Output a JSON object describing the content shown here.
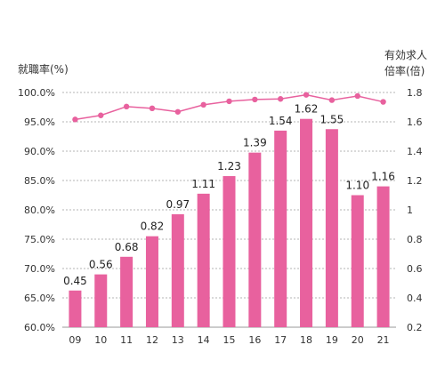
{
  "chart_data": {
    "type": "bar+line",
    "categories": [
      "09",
      "10",
      "11",
      "12",
      "13",
      "14",
      "15",
      "16",
      "17",
      "18",
      "19",
      "20",
      "21"
    ],
    "left_axis": {
      "title": "就職率(%)",
      "ylim": [
        60.0,
        100.0
      ],
      "ticks": [
        "100.0%",
        "95.0%",
        "90.0%",
        "85.0%",
        "80.0%",
        "75.0%",
        "70.0%",
        "65.0%",
        "60.0%"
      ],
      "tick_values": [
        100,
        95,
        90,
        85,
        80,
        75,
        70,
        65,
        60
      ]
    },
    "right_axis": {
      "title_line1": "有効求人",
      "title_line2": "倍率(倍)",
      "ylim": [
        0.2,
        1.8
      ],
      "ticks": [
        "1.8",
        "1.6",
        "1.4",
        "1.2",
        "1",
        "0.8",
        "0.6",
        "0.4",
        "0.2"
      ],
      "tick_values": [
        1.8,
        1.6,
        1.4,
        1.2,
        1.0,
        0.8,
        0.6,
        0.4,
        0.2
      ]
    },
    "bar_series": {
      "axis": "right",
      "values": [
        0.45,
        0.56,
        0.68,
        0.82,
        0.97,
        1.11,
        1.23,
        1.39,
        1.54,
        1.62,
        1.55,
        1.1,
        1.16
      ],
      "labels": [
        "0.45",
        "0.56",
        "0.68",
        "0.82",
        "0.97",
        "1.11",
        "1.23",
        "1.39",
        "1.54",
        "1.62",
        "1.55",
        "1.10",
        "1.16"
      ],
      "color": "#e8619e"
    },
    "line_series": {
      "axis": "left",
      "values": [
        95.4,
        96.1,
        97.6,
        97.3,
        96.7,
        97.9,
        98.5,
        98.8,
        98.9,
        99.6,
        98.7,
        99.4,
        98.4
      ],
      "color": "#e8619e"
    },
    "grid": "horizontal-dashed",
    "legend": "none"
  }
}
